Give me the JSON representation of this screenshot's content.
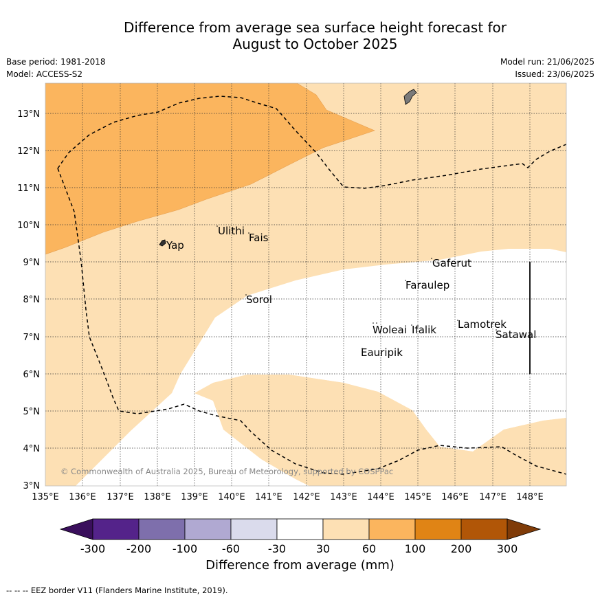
{
  "title_line1": "Difference from average sea surface height forecast for",
  "title_line2": "August to October 2025",
  "meta": {
    "base_period": "Base period: 1981-2018",
    "model": "Model: ACCESS-S2",
    "model_run": "Model run: 21/06/2025",
    "issued": "Issued: 23/06/2025"
  },
  "map": {
    "lon_labels": [
      "135°E",
      "136°E",
      "137°E",
      "138°E",
      "139°E",
      "140°E",
      "141°E",
      "142°E",
      "143°E",
      "144°E",
      "145°E",
      "146°E",
      "147°E",
      "148°E"
    ],
    "lat_labels": [
      "13°N",
      "12°N",
      "11°N",
      "10°N",
      "9°N",
      "8°N",
      "7°N",
      "6°N",
      "5°N",
      "4°N",
      "3°N"
    ],
    "islands": [
      "Ulithi",
      "Fais",
      "Yap",
      "Gaferut",
      "Faraulep",
      "Sorol",
      "Lamotrek",
      "Woleai",
      "Ifalik",
      "Satawal",
      "Eauripik"
    ],
    "copyright": "© Commonwealth of Australia 2025, Bureau of Meteorology, supported by COSPPac",
    "colors": {
      "band_30_60": "#fde0b4",
      "band_60_100": "#fbb55e",
      "land": "#7a7a7a"
    }
  },
  "colorbar": {
    "ticks": [
      "-300",
      "-200",
      "-100",
      "-60",
      "-30",
      "30",
      "60",
      "100",
      "200",
      "300"
    ],
    "colors": [
      "#3a0f5c",
      "#54238a",
      "#7e6fac",
      "#b0a9d2",
      "#dadbec",
      "#ffffff",
      "#fde0b4",
      "#fbb55e",
      "#e08415",
      "#b15607",
      "#7f3b08"
    ],
    "label": "Difference from average (mm)"
  },
  "footnote": "-- -- -- EEZ border V11 (Flanders Marine Institute, 2019)."
}
